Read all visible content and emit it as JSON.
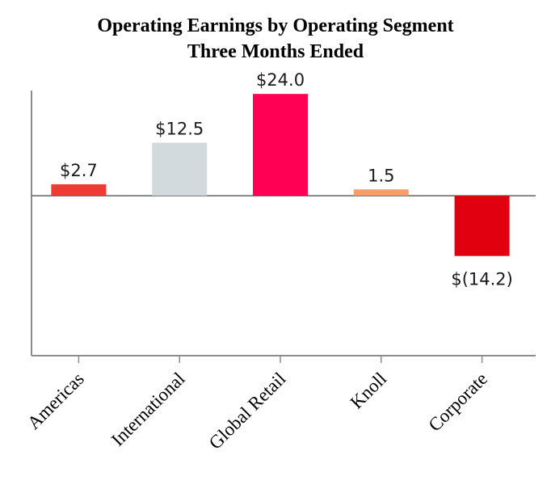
{
  "chart_data": {
    "type": "bar",
    "title": "Operating Earnings by Operating Segment",
    "subtitle": "Three Months Ended",
    "xlabel": "",
    "ylabel": "",
    "ylim": [
      -37.7,
      24.8
    ],
    "grid": false,
    "categories": [
      "Americas",
      "International",
      "Global Retail",
      "Knoll",
      "Corporate"
    ],
    "values": [
      2.7,
      12.5,
      24.0,
      1.5,
      -14.2
    ],
    "data_labels": [
      "$2.7",
      "$12.5",
      "$24.0",
      "1.5",
      "$(14.2)"
    ],
    "colors": [
      "#ee3b33",
      "#d3dade",
      "#ff0055",
      "#f5a06a",
      "#e0000f"
    ]
  }
}
